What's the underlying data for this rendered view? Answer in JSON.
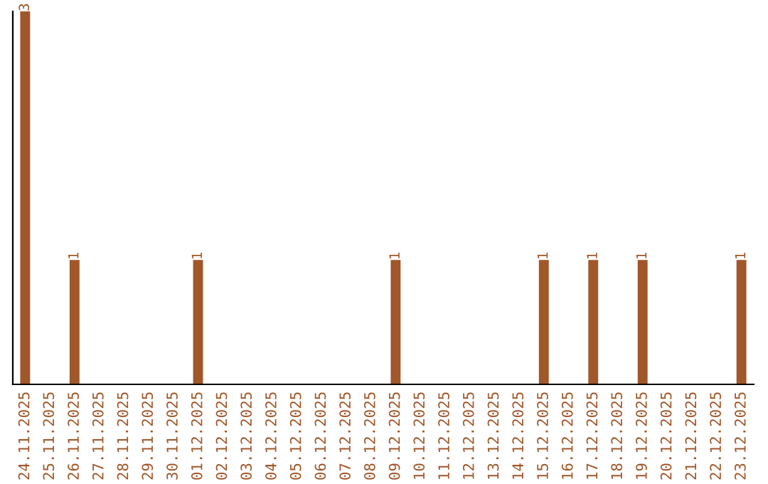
{
  "chart_data": {
    "type": "bar",
    "categories": [
      "24.11.2025",
      "25.11.2025",
      "26.11.2025",
      "27.11.2025",
      "28.11.2025",
      "29.11.2025",
      "30.11.2025",
      "01.12.2025",
      "02.12.2025",
      "03.12.2025",
      "04.12.2025",
      "05.12.2025",
      "06.12.2025",
      "07.12.2025",
      "08.12.2025",
      "09.12.2025",
      "10.12.2025",
      "11.12.2025",
      "12.12.2025",
      "13.12.2025",
      "14.12.2025",
      "15.12.2025",
      "16.12.2025",
      "17.12.2025",
      "18.12.2025",
      "19.12.2025",
      "20.12.2025",
      "21.12.2025",
      "22.12.2025",
      "23.12.2025"
    ],
    "values": [
      3,
      0,
      1,
      0,
      0,
      0,
      0,
      1,
      0,
      0,
      0,
      0,
      0,
      0,
      0,
      1,
      0,
      0,
      0,
      0,
      0,
      1,
      0,
      1,
      0,
      1,
      0,
      0,
      0,
      1
    ],
    "value_labels": [
      "3",
      null,
      "1",
      null,
      null,
      null,
      null,
      "1",
      null,
      null,
      null,
      null,
      null,
      null,
      null,
      "1",
      null,
      null,
      null,
      null,
      null,
      "1",
      null,
      "1",
      null,
      "1",
      null,
      null,
      null,
      "1"
    ],
    "color": "#a0572a",
    "grid": false,
    "legend": false,
    "tick_labels": "x"
  }
}
